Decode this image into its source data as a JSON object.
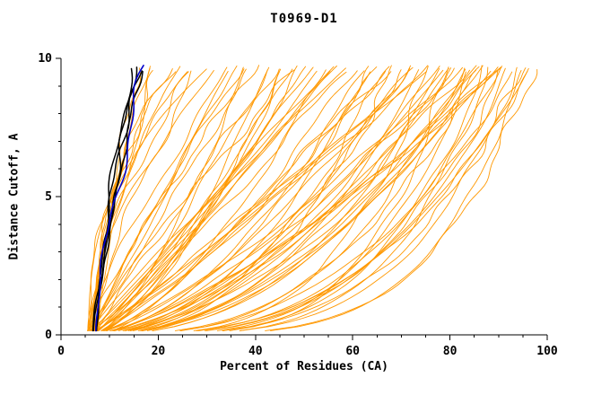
{
  "chart_data": {
    "type": "line",
    "title": "T0969-D1",
    "xlabel": "Percent of Residues (CA)",
    "ylabel": "Distance Cutoff, A",
    "xlim": [
      0,
      100
    ],
    "ylim": [
      0,
      10
    ],
    "x_major_ticks": [
      0,
      20,
      40,
      60,
      80,
      100
    ],
    "x_minor_step": 5,
    "y_major_ticks": [
      0,
      5,
      10
    ],
    "y_minor_step": 1,
    "legend": "none",
    "grid": false,
    "colors": {
      "model": "#ff9800",
      "best": "#000000",
      "highlight": "#0000cc",
      "axis": "#000000"
    },
    "seed": 42,
    "y_start": 0.15,
    "series_groups": [
      {
        "name": "server-models",
        "color_key": "model",
        "stroke_width": 0.9,
        "curves": [
          [
            6,
            16,
            1.3
          ],
          [
            6.5,
            18,
            1.5
          ],
          [
            7,
            20,
            1.8
          ],
          [
            5.5,
            22,
            2.0
          ],
          [
            6,
            24,
            1.6
          ],
          [
            7,
            26,
            2.2
          ],
          [
            6.5,
            28,
            1.4
          ],
          [
            5.8,
            30,
            2.5
          ],
          [
            6.2,
            32,
            1.9
          ],
          [
            7.2,
            19,
            1.2
          ],
          [
            6.8,
            23,
            2.3
          ],
          [
            5.6,
            27,
            1.7
          ],
          [
            5,
            34,
            0.9
          ],
          [
            6,
            36,
            1.1
          ],
          [
            7,
            38,
            0.7
          ],
          [
            5.5,
            40,
            1.2
          ],
          [
            6.5,
            42,
            0.8
          ],
          [
            4.8,
            44,
            1.0
          ],
          [
            6,
            46,
            0.65
          ],
          [
            7,
            48,
            1.15
          ],
          [
            5.2,
            50,
            0.75
          ],
          [
            6.8,
            52,
            0.95
          ],
          [
            5.5,
            54,
            0.6
          ],
          [
            6.2,
            56,
            1.05
          ],
          [
            4.5,
            58,
            0.85
          ],
          [
            7.5,
            60,
            0.7
          ],
          [
            5,
            35,
            1.25
          ],
          [
            6,
            45,
            0.62
          ],
          [
            6.5,
            55,
            0.9
          ],
          [
            5.8,
            39,
            1.0
          ],
          [
            6.3,
            49,
            0.72
          ],
          [
            5.4,
            59,
            1.1
          ],
          [
            7,
            43,
            0.66
          ],
          [
            4.7,
            53,
            0.88
          ],
          [
            6.6,
            37,
            1.18
          ],
          [
            5.9,
            47,
            0.78
          ],
          [
            6.1,
            57,
            0.95
          ],
          [
            5,
            62,
            0.55
          ],
          [
            6,
            64,
            0.7
          ],
          [
            7,
            66,
            0.45
          ],
          [
            5.5,
            68,
            0.85
          ],
          [
            6.5,
            70,
            0.5
          ],
          [
            4.8,
            72,
            0.65
          ],
          [
            6,
            74,
            0.42
          ],
          [
            7,
            76,
            0.9
          ],
          [
            5.2,
            78,
            0.58
          ],
          [
            6.8,
            80,
            0.48
          ],
          [
            5.5,
            82,
            0.75
          ],
          [
            6.2,
            84,
            0.44
          ],
          [
            4.5,
            86,
            0.6
          ],
          [
            7.5,
            88,
            0.52
          ],
          [
            5,
            90,
            0.68
          ],
          [
            6,
            63,
            0.47
          ],
          [
            6.5,
            67,
            0.8
          ],
          [
            5.8,
            71,
            0.55
          ],
          [
            6.3,
            75,
            0.95
          ],
          [
            5.4,
            79,
            0.5
          ],
          [
            7,
            83,
            0.62
          ],
          [
            4.7,
            87,
            0.46
          ],
          [
            6.6,
            91,
            0.72
          ],
          [
            5.9,
            65,
            0.58
          ],
          [
            6.1,
            69,
            0.43
          ],
          [
            5.3,
            73,
            0.88
          ],
          [
            6.7,
            77,
            0.53
          ],
          [
            5.1,
            81,
            0.66
          ],
          [
            6.4,
            85,
            0.49
          ],
          [
            5.7,
            89,
            0.57
          ],
          [
            5,
            92,
            0.3
          ],
          [
            6,
            94,
            0.25
          ],
          [
            7,
            96,
            0.35
          ],
          [
            5.5,
            97,
            0.22
          ],
          [
            6.5,
            93,
            0.38
          ],
          [
            4.8,
            95,
            0.28
          ],
          [
            6,
            90,
            0.32
          ],
          [
            7,
            88,
            0.24
          ],
          [
            5.2,
            86,
            0.36
          ],
          [
            6.8,
            84,
            0.27
          ],
          [
            5.5,
            82,
            0.33
          ],
          [
            6.2,
            80,
            0.23
          ],
          [
            4.5,
            78,
            0.39
          ],
          [
            7.5,
            76,
            0.29
          ],
          [
            5,
            96,
            0.34
          ],
          [
            6,
            95,
            0.21
          ],
          [
            6.5,
            91,
            0.31
          ],
          [
            5.8,
            87,
            0.26
          ]
        ]
      },
      {
        "name": "best-models-black",
        "color_key": "best",
        "stroke_width": 1.5,
        "curves": [
          [
            6.8,
            14.5,
            1.2
          ],
          [
            7.0,
            15.5,
            1.25
          ],
          [
            7.2,
            16.5,
            1.3
          ],
          [
            6.6,
            15.0,
            1.15
          ]
        ]
      },
      {
        "name": "highlight-model-blue",
        "color_key": "highlight",
        "stroke_width": 1.6,
        "curves": [
          [
            6.9,
            17.5,
            1.35
          ]
        ]
      }
    ]
  }
}
